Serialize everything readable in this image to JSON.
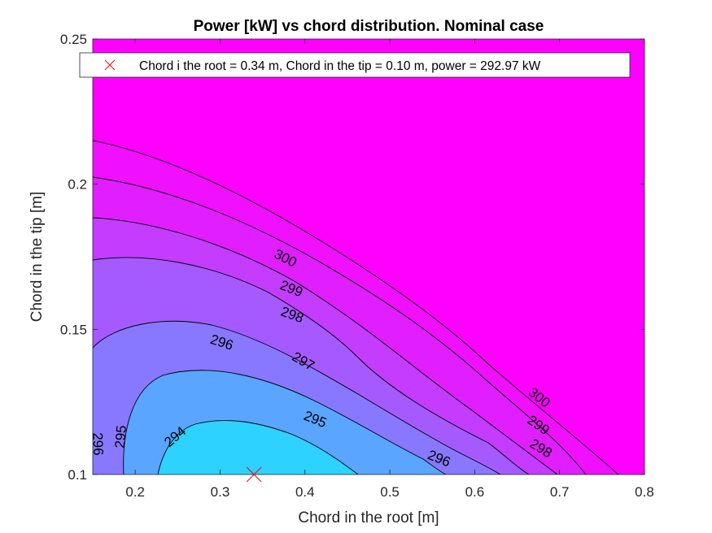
{
  "chart_data": {
    "type": "contour",
    "title": "Power [kW] vs chord distribution. Nominal case",
    "xlabel": "Chord in the root [m]",
    "ylabel": "Chord in the tip [m]",
    "xlim": [
      0.15,
      0.8
    ],
    "ylim": [
      0.1,
      0.25
    ],
    "xticks": [
      "0.2",
      "0.3",
      "0.4",
      "0.5",
      "0.6",
      "0.7",
      "0.8"
    ],
    "yticks": [
      "0.1",
      "0.15",
      "0.2",
      "0.25"
    ],
    "colormap": "cool",
    "color_min": "#00ffff",
    "color_max": "#ff00ff",
    "levels": [
      294,
      295,
      296,
      297,
      298,
      299,
      300
    ],
    "level_labels": [
      {
        "text": "300",
        "x": 0.377,
        "y": 0.1745,
        "angle": 27
      },
      {
        "text": "299",
        "x": 0.384,
        "y": 0.164,
        "angle": 22
      },
      {
        "text": "298",
        "x": 0.385,
        "y": 0.155,
        "angle": 20
      },
      {
        "text": "297",
        "x": 0.398,
        "y": 0.139,
        "angle": 30
      },
      {
        "text": "296",
        "x": 0.302,
        "y": 0.1455,
        "angle": 18
      },
      {
        "text": "295",
        "x": 0.412,
        "y": 0.119,
        "angle": 22
      },
      {
        "text": "296",
        "x": 0.558,
        "y": 0.1055,
        "angle": 22
      },
      {
        "text": "300",
        "x": 0.676,
        "y": 0.1265,
        "angle": 38
      },
      {
        "text": "299",
        "x": 0.675,
        "y": 0.117,
        "angle": 35
      },
      {
        "text": "298",
        "x": 0.678,
        "y": 0.109,
        "angle": 32
      },
      {
        "text": "294",
        "x": 0.247,
        "y": 0.113,
        "angle": -40
      },
      {
        "text": "295",
        "x": 0.183,
        "y": 0.113,
        "angle": -85
      },
      {
        "text": "296",
        "x": 0.156,
        "y": 0.1105,
        "angle": 88
      }
    ],
    "optimum": {
      "x": 0.34,
      "y": 0.1,
      "power": 292.97,
      "marker": "x",
      "color": "#ff0000"
    },
    "legend": {
      "position": "top",
      "entries": [
        "Chord i the root = 0.34 m, Chord in the tip = 0.10 m, power = 292.97 kW"
      ]
    }
  }
}
